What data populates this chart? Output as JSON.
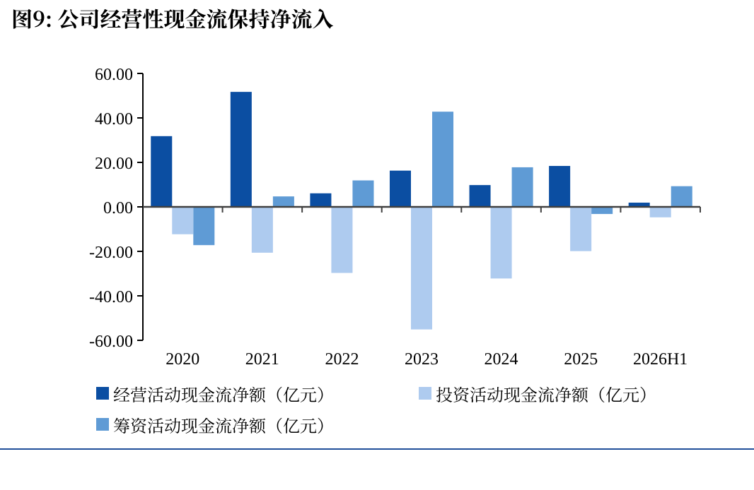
{
  "chart_data": {
    "type": "bar",
    "title": "图9: 公司经营性现金流保持净流入",
    "categories": [
      "2020",
      "2021",
      "2022",
      "2023",
      "2024",
      "2025",
      "2026H1"
    ],
    "series": [
      {
        "name": "经营活动现金流净额（亿元）",
        "color": "#0b4ea2",
        "values": [
          31.8,
          51.7,
          6.1,
          16.3,
          9.8,
          18.4,
          1.9
        ]
      },
      {
        "name": "投资活动现金流净额（亿元）",
        "color": "#aecbef",
        "values": [
          -12.3,
          -20.6,
          -29.7,
          -55.1,
          -32.2,
          -19.9,
          -4.7
        ]
      },
      {
        "name": "筹资活动现金流净额（亿元）",
        "color": "#5f9bd5",
        "values": [
          -17.2,
          4.7,
          11.9,
          42.8,
          17.8,
          -3.2,
          9.3
        ]
      }
    ],
    "ylim": [
      -60,
      60
    ],
    "yticks": [
      {
        "value": -60,
        "label": "-60.00"
      },
      {
        "value": -40,
        "label": "-40.00"
      },
      {
        "value": -20,
        "label": "-20.00"
      },
      {
        "value": 0,
        "label": "0.00"
      },
      {
        "value": 20,
        "label": "20.00"
      },
      {
        "value": 40,
        "label": "40.00"
      },
      {
        "value": 60,
        "label": "60.00"
      }
    ],
    "legend": "bottom"
  }
}
